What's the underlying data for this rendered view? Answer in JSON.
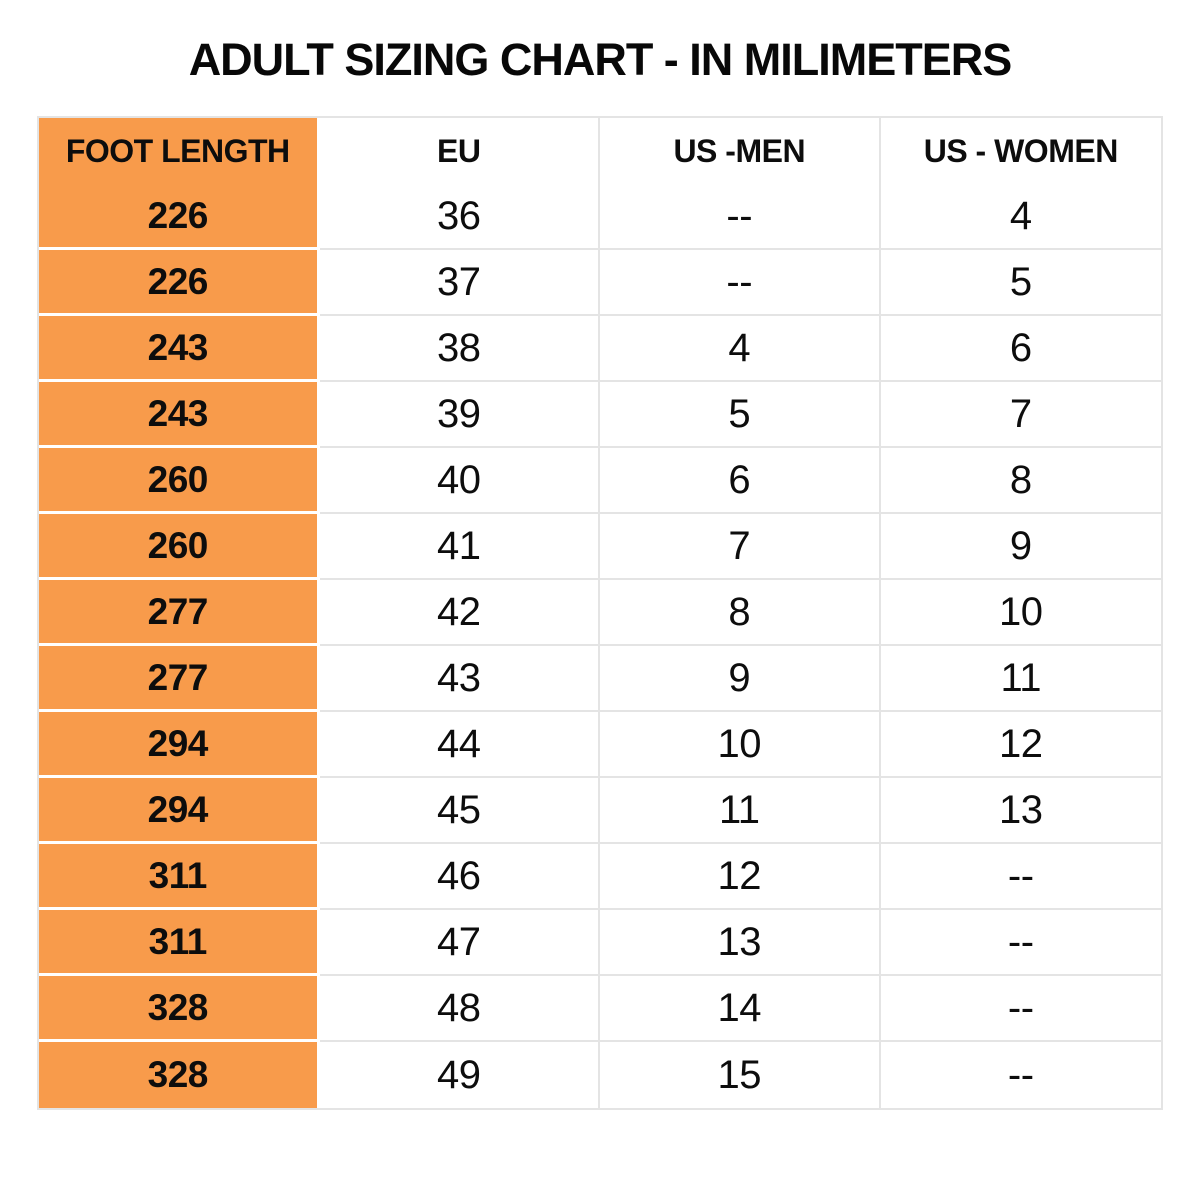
{
  "title": "ADULT SIZING CHART - IN MILIMETERS",
  "colors": {
    "highlight_column": "#F89B4B",
    "grid_line": "#E4E4E4",
    "text": "#0D0D0D",
    "background": "#FFFFFF"
  },
  "chart_data": {
    "type": "table",
    "title": "ADULT SIZING CHART - IN MILIMETERS",
    "columns": [
      "FOOT LENGTH",
      "EU",
      "US -MEN",
      "US - WOMEN"
    ],
    "rows": [
      [
        "226",
        "36",
        "--",
        "4"
      ],
      [
        "226",
        "37",
        "--",
        "5"
      ],
      [
        "243",
        "38",
        "4",
        "6"
      ],
      [
        "243",
        "39",
        "5",
        "7"
      ],
      [
        "260",
        "40",
        "6",
        "8"
      ],
      [
        "260",
        "41",
        "7",
        "9"
      ],
      [
        "277",
        "42",
        "8",
        "10"
      ],
      [
        "277",
        "43",
        "9",
        "11"
      ],
      [
        "294",
        "44",
        "10",
        "12"
      ],
      [
        "294",
        "45",
        "11",
        "13"
      ],
      [
        "311",
        "46",
        "12",
        "--"
      ],
      [
        "311",
        "47",
        "13",
        "--"
      ],
      [
        "328",
        "48",
        "14",
        "--"
      ],
      [
        "328",
        "49",
        "15",
        "--"
      ]
    ],
    "layout": {
      "highlighted_column": "FOOT LENGTH",
      "units": "millimeters",
      "grid": true
    }
  }
}
